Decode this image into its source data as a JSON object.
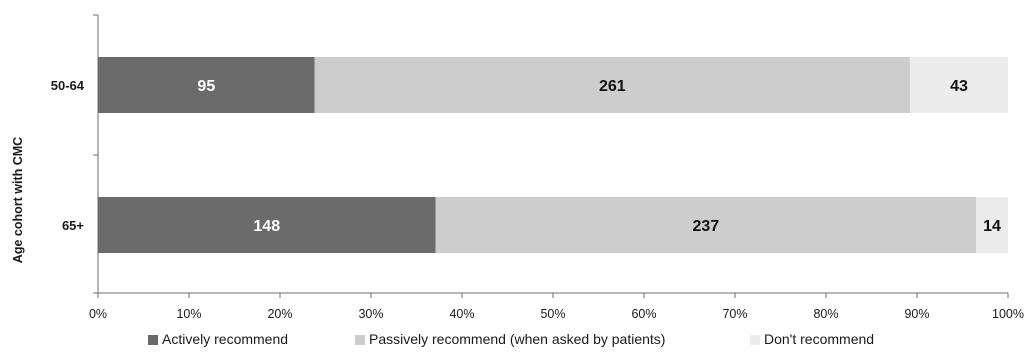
{
  "chart_data": {
    "type": "bar",
    "orientation": "horizontal",
    "stacked": true,
    "normalized": "percent",
    "categories": [
      "50-64",
      "65+"
    ],
    "series": [
      {
        "name": "Actively recommend",
        "values": [
          95,
          148
        ],
        "color": "#6b6b6b",
        "label_color": "#ffffff"
      },
      {
        "name": "Passively recommend (when asked by patients)",
        "values": [
          261,
          237
        ],
        "color": "#cdcdcd",
        "label_color": "#111111"
      },
      {
        "name": "Don't recommend",
        "values": [
          43,
          14
        ],
        "color": "#ececec",
        "label_color": "#111111"
      }
    ],
    "title": "",
    "xlabel": "",
    "ylabel": "Age cohort with CMC",
    "xlim": [
      0,
      100
    ],
    "xticks": [
      "0%",
      "10%",
      "20%",
      "30%",
      "40%",
      "50%",
      "60%",
      "70%",
      "80%",
      "90%",
      "100%"
    ],
    "grid": false,
    "legend_position": "bottom"
  }
}
